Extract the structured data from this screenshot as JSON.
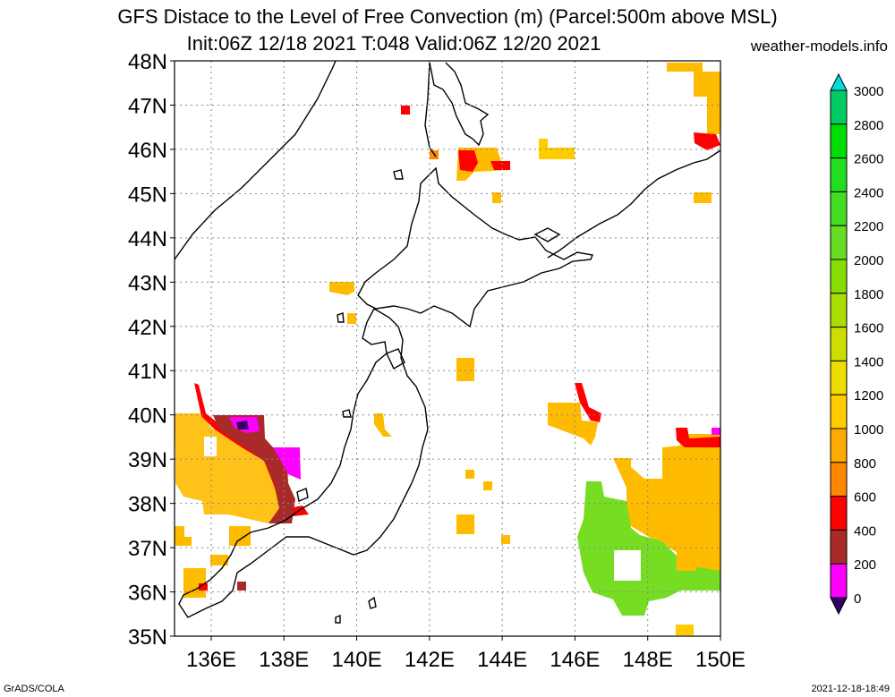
{
  "header": {
    "title_line1": "GFS Distace to the Level of Free Convection (m) (Parcel:500m above MSL)",
    "title_line2": "Init:06Z 12/18 2021 T:048 Valid:06Z 12/20 2021",
    "site": "weather-models.info"
  },
  "footer": {
    "left": "GrADS/COLA",
    "right": "2021-12-18-18:49"
  },
  "map": {
    "lat_labels": [
      "48N",
      "47N",
      "46N",
      "45N",
      "44N",
      "43N",
      "42N",
      "41N",
      "40N",
      "39N",
      "38N",
      "37N",
      "36N",
      "35N"
    ],
    "lon_labels": [
      "136E",
      "138E",
      "140E",
      "142E",
      "144E",
      "146E",
      "148E",
      "150E"
    ]
  },
  "colorbar": {
    "labels": [
      "3000",
      "2800",
      "2600",
      "2400",
      "2200",
      "2000",
      "1800",
      "1600",
      "1400",
      "1200",
      "1000",
      "800",
      "600",
      "400",
      "200",
      "0"
    ],
    "colors": [
      "#00dddd",
      "#00cc66",
      "#00dd00",
      "#22dd22",
      "#44dd22",
      "#66dd22",
      "#88dd00",
      "#aadd00",
      "#ccdd00",
      "#eedd00",
      "#ffcc00",
      "#ffaa00",
      "#ff8800",
      "#ff0000",
      "#aa2a2a",
      "#ff00ff",
      "#330066"
    ],
    "top_arrow_color": "#00dddd",
    "bottom_arrow_color": "#330066"
  }
}
